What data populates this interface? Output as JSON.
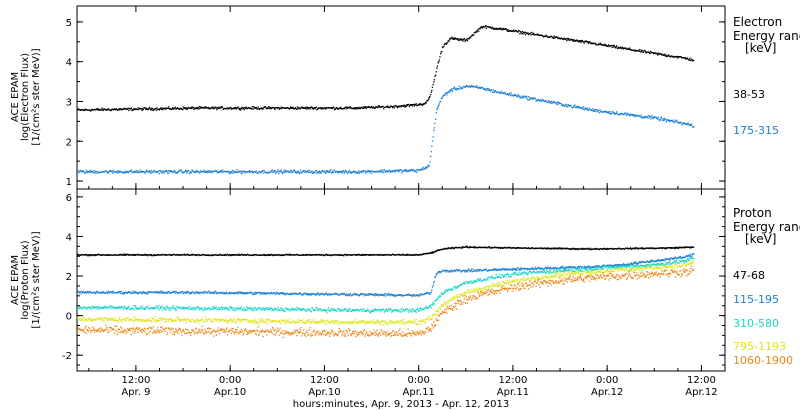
{
  "chart_data": {
    "type": "scatter",
    "time_axis": {
      "xlabel": "hours:minutes, Apr.  9, 2013 - Apr. 12, 2013",
      "tick_times": [
        "12:00",
        "0:00",
        "12:00",
        "0:00",
        "12:00",
        "0:00",
        "12:00"
      ],
      "tick_dates": [
        "Apr. 9",
        "Apr.10",
        "Apr.10",
        "Apr.11",
        "Apr.11",
        "Apr.12",
        "Apr.12"
      ],
      "tick_hours": [
        12,
        24,
        36,
        48,
        60,
        72,
        84
      ],
      "x_range_hours_from_apr9": [
        4.5,
        87
      ]
    },
    "panels": [
      {
        "id": "electron",
        "ylabel_lines": [
          "ACE EPAM",
          "log(Electron Flux)",
          "[1/(cm²s ster MeV)]"
        ],
        "ylim": [
          0.8,
          5.4
        ],
        "yticks": [
          "1",
          "2",
          "3",
          "4",
          "5"
        ],
        "ytick_values": [
          1,
          2,
          3,
          4,
          5
        ],
        "legend_title_lines": [
          "Electron",
          "Energy ranges"
        ],
        "legend_unit": "[keV]",
        "series": [
          {
            "name": "38-53",
            "color": "#000000",
            "jitter": 0.04,
            "x": [
              4.5,
              20,
              30,
              40,
              44,
              47,
              48.5,
              49.2,
              49.6,
              50.3,
              51,
              52,
              54,
              56,
              58,
              62,
              66,
              70,
              74,
              78,
              82,
              83
            ],
            "y": [
              2.8,
              2.85,
              2.85,
              2.85,
              2.88,
              2.92,
              2.95,
              3.05,
              3.3,
              3.9,
              4.4,
              4.6,
              4.55,
              4.9,
              4.85,
              4.72,
              4.6,
              4.48,
              4.35,
              4.22,
              4.1,
              4.05
            ]
          },
          {
            "name": "175-315",
            "color": "#1a7fd4",
            "jitter": 0.05,
            "x": [
              4.5,
              20,
              30,
              40,
              48,
              49.3,
              49.6,
              50.2,
              51,
              52,
              54,
              56,
              58,
              62,
              66,
              70,
              74,
              78,
              82,
              83
            ],
            "y": [
              1.25,
              1.25,
              1.25,
              1.25,
              1.28,
              1.4,
              1.9,
              2.8,
              3.15,
              3.3,
              3.4,
              3.35,
              3.25,
              3.1,
              2.95,
              2.8,
              2.7,
              2.6,
              2.45,
              2.4
            ]
          }
        ]
      },
      {
        "id": "proton",
        "ylabel_lines": [
          "ACE EPAM",
          "log(Proton Flux)",
          "[1/(cm²s ster MeV)]"
        ],
        "ylim": [
          -2.8,
          6.4
        ],
        "yticks": [
          "-2",
          "0",
          "2",
          "4",
          "6"
        ],
        "ytick_values": [
          -2,
          0,
          2,
          4,
          6
        ],
        "legend_title_lines": [
          "Proton",
          "Energy ranges"
        ],
        "legend_unit": "[keV]",
        "series": [
          {
            "name": "47-68",
            "color": "#000000",
            "jitter": 0.04,
            "x": [
              4.5,
              30,
              48,
              49.5,
              51,
              54,
              60,
              70,
              80,
              83
            ],
            "y": [
              3.1,
              3.1,
              3.1,
              3.2,
              3.4,
              3.5,
              3.45,
              3.4,
              3.45,
              3.5
            ]
          },
          {
            "name": "115-195",
            "color": "#1a7fd4",
            "jitter": 0.08,
            "x": [
              4.5,
              20,
              30,
              40,
              48,
              49.5,
              50.2,
              51,
              54,
              58,
              62,
              66,
              70,
              74,
              78,
              82,
              83
            ],
            "y": [
              1.2,
              1.2,
              1.15,
              1.1,
              1.05,
              1.2,
              2.2,
              2.3,
              2.3,
              2.35,
              2.4,
              2.45,
              2.5,
              2.6,
              2.8,
              3.0,
              3.15
            ]
          },
          {
            "name": "310-580",
            "color": "#19d6c8",
            "jitter": 0.12,
            "x": [
              4.5,
              20,
              30,
              40,
              48,
              49.5,
              51,
              54,
              58,
              62,
              66,
              70,
              74,
              78,
              82,
              83
            ],
            "y": [
              0.45,
              0.4,
              0.35,
              0.3,
              0.3,
              0.5,
              1.2,
              1.7,
              2.0,
              2.2,
              2.3,
              2.4,
              2.5,
              2.6,
              2.8,
              2.95
            ]
          },
          {
            "name": "795-1193",
            "color": "#dfe519",
            "jitter": 0.15,
            "x": [
              4.5,
              20,
              30,
              40,
              48,
              49.5,
              51,
              54,
              58,
              62,
              66,
              70,
              74,
              78,
              82,
              83
            ],
            "y": [
              -0.15,
              -0.2,
              -0.25,
              -0.3,
              -0.3,
              -0.1,
              0.6,
              1.2,
              1.6,
              1.9,
              2.1,
              2.25,
              2.35,
              2.45,
              2.6,
              2.75
            ]
          },
          {
            "name": "1060-1900",
            "color": "#f08410",
            "jitter": 0.25,
            "x": [
              4.5,
              20,
              30,
              40,
              48,
              49.5,
              51,
              54,
              58,
              62,
              66,
              70,
              74,
              78,
              82,
              83
            ],
            "y": [
              -0.7,
              -0.75,
              -0.8,
              -0.85,
              -0.9,
              -0.6,
              0.2,
              0.9,
              1.3,
              1.6,
              1.8,
              1.95,
              2.05,
              2.15,
              2.25,
              2.3
            ]
          }
        ]
      }
    ]
  }
}
